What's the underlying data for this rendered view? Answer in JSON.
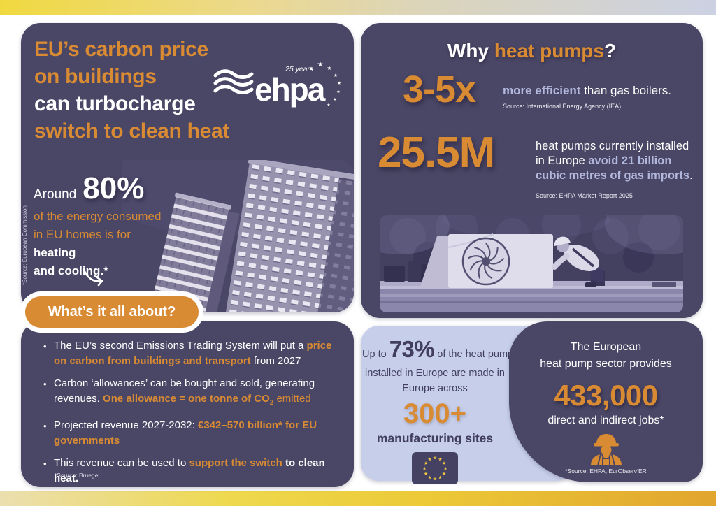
{
  "colors": {
    "panel_purple": "#4a4665",
    "accent_orange": "#d98b33",
    "lavender_text": "#b3b9de",
    "light_blue_panel": "#c6cee9",
    "dark_text_on_blue": "#423e60",
    "star_yellow": "#f1c93e"
  },
  "left_top": {
    "title": {
      "line1": "EU’s carbon price",
      "line2": "on buildings",
      "line3": "can turbocharge",
      "line4": "switch to clean heat"
    },
    "logo": {
      "name": "ehpa",
      "badge": "25 years"
    },
    "stat": {
      "prefix": "Around",
      "value": "80%",
      "line1": "of the energy consumed",
      "line2": "in EU homes is for",
      "line3": "heating",
      "line4": "and cooling.*"
    },
    "source_vertical": "*Source: European Commission",
    "button_label": "What’s it all about?"
  },
  "left_bottom": {
    "bullets": [
      [
        {
          "t": "The EU’s second Emissions Trading System will put a ",
          "s": "w"
        },
        {
          "t": "price on carbon from buildings and transport",
          "s": "ob"
        },
        {
          "t": " from 2027",
          "s": "w"
        }
      ],
      [
        {
          "t": "Carbon ‘allowances’ can be bought and sold, generating revenues. ",
          "s": "w"
        },
        {
          "t": "One allowance = one tonne of CO",
          "s": "ob"
        },
        {
          "t": "2",
          "s": "ob",
          "sub": true
        },
        {
          "t": " emitted",
          "s": "o"
        }
      ],
      [
        {
          "t": "Projected revenue 2027-2032: ",
          "s": "w"
        },
        {
          "t": "€342–570 billion* for EU governments",
          "s": "ob"
        }
      ],
      [
        {
          "t": "This revenue can be used to ",
          "s": "w"
        },
        {
          "t": "support the switch",
          "s": "ob"
        },
        {
          "t": " to clean heat.",
          "s": "wb"
        }
      ]
    ],
    "source": "*Source: Bruegel"
  },
  "right_top": {
    "title_white": "Why ",
    "title_orange": "heat pumps",
    "title_mark": "?",
    "stat1": {
      "value": "3-5x",
      "bold": "more efficient",
      "rest": " than gas boilers.",
      "source": "Source: International Energy Agency (IEA)"
    },
    "stat2": {
      "value": "25.5M",
      "white": "heat pumps currently installed in Europe ",
      "highlight": "avoid 21 billion cubic metres of gas imports",
      "end": ".",
      "source": "Source: EHPA Market Report 2025"
    }
  },
  "right_bottom_blue": {
    "pre": "Up to ",
    "value": "73%",
    "post": " of the heat pumps",
    "line2": "installed in Europe are made in",
    "line3": "Europe across",
    "big": "300+",
    "label": "manufacturing sites"
  },
  "right_bottom_dark": {
    "line1": "The European",
    "line2": "heat pump sector provides",
    "value": "433,000",
    "label": "direct and indirect jobs*",
    "source": "*Source: EHPA, EurObserv’ER"
  }
}
